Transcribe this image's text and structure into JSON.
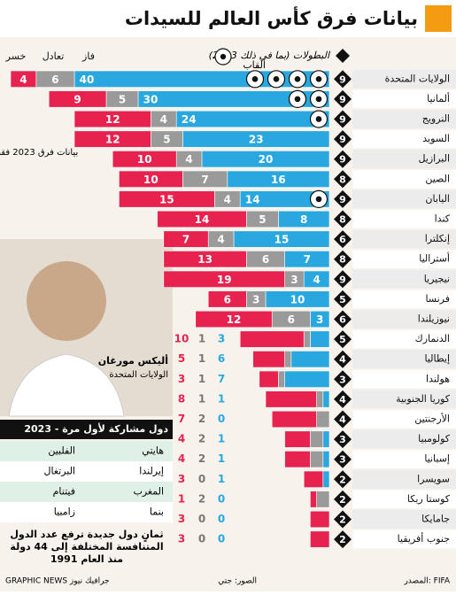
{
  "chart_data": {
    "type": "bar",
    "orientation": "horizontal",
    "stacked": true,
    "title": "بيانات فرق كأس العالم للسيدات",
    "tournaments_label": "البطولات (بما في ذلك 2023)",
    "titles_label": "ألقاب",
    "categories": [
      "الولايات المتحدة",
      "ألمانيا",
      "النرويج",
      "السويد",
      "البرازيل",
      "الصين",
      "اليابان",
      "كندا",
      "إنكلترا",
      "أستراليا",
      "نيجيريا",
      "فرنسا",
      "نيوزيلندا",
      "الدنمارك",
      "إيطاليا",
      "هولندا",
      "كوريا الجنوبية",
      "الأرجنتين",
      "كولومبيا",
      "إسبانيا",
      "سويسرا",
      "كوستا ريكا",
      "جامايكا",
      "جنوب أفريقيا"
    ],
    "tournaments": [
      9,
      9,
      9,
      9,
      9,
      8,
      9,
      8,
      6,
      8,
      9,
      5,
      6,
      5,
      4,
      3,
      4,
      4,
      3,
      3,
      2,
      2,
      2,
      2
    ],
    "titles": [
      4,
      2,
      1,
      0,
      0,
      0,
      1,
      0,
      0,
      0,
      0,
      0,
      0,
      0,
      0,
      0,
      0,
      0,
      0,
      0,
      0,
      0,
      0,
      0
    ],
    "series": [
      {
        "name": "فاز",
        "color": "#29a8e0",
        "values": [
          40,
          30,
          24,
          23,
          20,
          16,
          14,
          8,
          15,
          7,
          4,
          10,
          3,
          3,
          6,
          7,
          1,
          0,
          1,
          1,
          1,
          0,
          0,
          0
        ]
      },
      {
        "name": "تعادل",
        "color": "#9a9a9a",
        "values": [
          6,
          5,
          4,
          5,
          4,
          7,
          4,
          5,
          4,
          6,
          3,
          3,
          6,
          1,
          1,
          1,
          1,
          2,
          2,
          2,
          0,
          2,
          0,
          0
        ]
      },
      {
        "name": "خسر",
        "color": "#e8224f",
        "values": [
          4,
          9,
          12,
          12,
          10,
          10,
          15,
          14,
          7,
          13,
          19,
          6,
          12,
          10,
          5,
          3,
          8,
          7,
          4,
          4,
          3,
          1,
          3,
          3
        ]
      }
    ]
  },
  "sidebar": {
    "note_2023": "بيانات فرق 2023 فقط",
    "player_name": "أليكس مورغان",
    "player_team": "الولايات المتحدة",
    "first_timers": {
      "title": "دول مشاركة لأول مرة - 2023",
      "rows": [
        [
          "هايتي",
          "الفلبين"
        ],
        [
          "إيرلندا",
          "البرتغال"
        ],
        [
          "المغرب",
          "فيتنام"
        ],
        [
          "بنما",
          "زامبيا"
        ]
      ]
    },
    "note_lines": [
      "ثمانٍ دول جديدة ترفع عدد الدول",
      "المتنافسة المختلفة إلى 44 دولة",
      "منذ العام 1991"
    ]
  },
  "footer": {
    "source": "المصدر: FIFA",
    "photos": "الصور: جتي",
    "credit": "GRAPHIC NEWS جرافيك نيوز"
  }
}
